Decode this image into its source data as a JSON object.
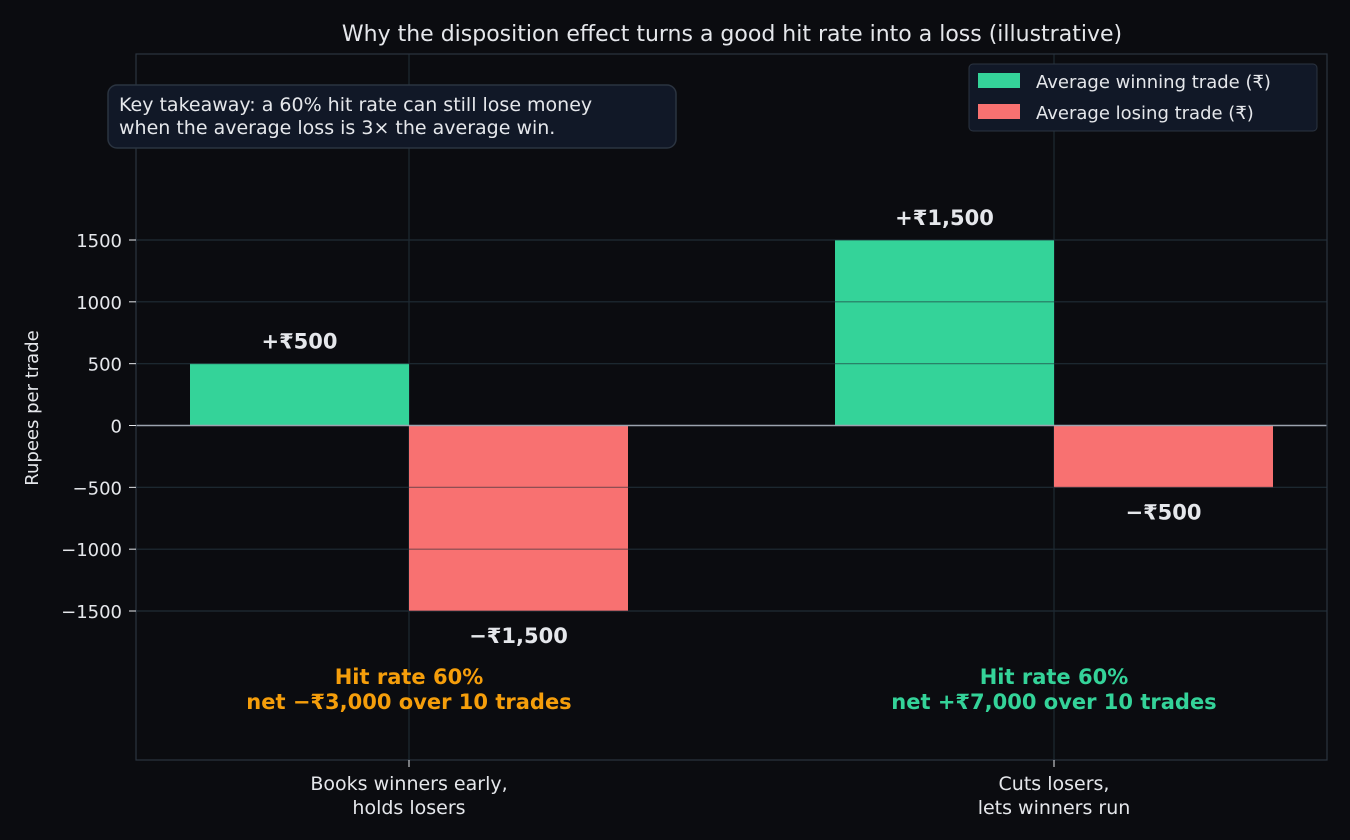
{
  "chart_data": {
    "type": "bar",
    "title": "Why the disposition effect turns a good hit rate into a loss (illustrative)",
    "xlabel": "",
    "ylabel": "Rupees per trade",
    "ylim": [
      -2700,
      3000
    ],
    "yticks": [
      1500,
      1000,
      500,
      0,
      -500,
      -1000,
      -1500
    ],
    "ytick_labels": [
      "1500",
      "1000",
      "500",
      "0",
      "−500",
      "−1000",
      "−1500"
    ],
    "categories": [
      "Books winners early,\nholds losers",
      "Cuts losers,\nlets winners run"
    ],
    "series": [
      {
        "name": "Average winning trade (₹)",
        "color": "#34d399",
        "values": [
          500,
          1500
        ],
        "labels": [
          "+₹500",
          "+₹1,500"
        ]
      },
      {
        "name": "Average losing trade (₹)",
        "color": "#f87171",
        "values": [
          -1500,
          -500
        ],
        "labels": [
          "−₹1,500",
          "−₹500"
        ]
      }
    ],
    "annotations": [
      {
        "text": "Hit rate 60%\nnet −₹3,000 over 10 trades",
        "color": "#f59e0b"
      },
      {
        "text": "Hit rate 60%\nnet +₹7,000 over 10 trades",
        "color": "#34d399"
      }
    ],
    "callout": "Key takeaway: a 60% hit rate can still lose money\nwhen the average loss is 3× the average win.",
    "legend_position": "top-right",
    "grid": true
  },
  "colors": {
    "background": "#0b0c10",
    "text": "#e5e7eb",
    "grid": "#1f2a33",
    "axis": "#2b3440",
    "zero_line": "#9ca3af",
    "box_bg": "#111827"
  }
}
